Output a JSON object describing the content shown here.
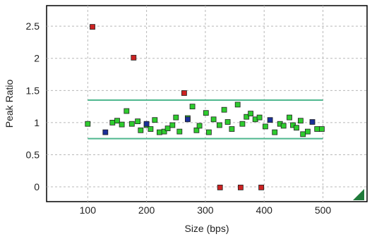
{
  "chart_data": {
    "type": "scatter",
    "title": "",
    "xlabel": "Size (bps)",
    "ylabel": "Peak Ratio",
    "xlim": [
      30,
      575
    ],
    "ylim": [
      -0.23,
      2.82
    ],
    "x_ticks": [
      100,
      200,
      300,
      400,
      500
    ],
    "x_tick_labels": [
      "100",
      "200",
      "300",
      "400",
      "500"
    ],
    "y_ticks": [
      0,
      0.5,
      1,
      1.5,
      2,
      2.5
    ],
    "y_tick_labels": [
      "0",
      "0.5",
      "1",
      "1.5",
      "2",
      "2.5"
    ],
    "grid": true,
    "grid_style": "dashed",
    "threshold_lines": [
      {
        "y": 1.35,
        "x_range": [
          100,
          500
        ],
        "color": "#4fb88f"
      },
      {
        "y": 0.75,
        "x_range": [
          100,
          500
        ],
        "color": "#4fb88f"
      }
    ],
    "colors": {
      "in_range": "#2ecc2e",
      "out_of_range": "#cc2222",
      "off_size": "#1a2f99",
      "corner_marker": "#1f7a3a"
    },
    "series": [
      {
        "category": "in_range",
        "points": [
          [
            100,
            0.98
          ],
          [
            142,
            1.0
          ],
          [
            150,
            1.03
          ],
          [
            158,
            0.97
          ],
          [
            166,
            1.18
          ],
          [
            175,
            0.98
          ],
          [
            185,
            1.02
          ],
          [
            190,
            0.88
          ],
          [
            200,
            0.96
          ],
          [
            207,
            0.9
          ],
          [
            214,
            1.04
          ],
          [
            222,
            0.85
          ],
          [
            230,
            0.86
          ],
          [
            236,
            0.91
          ],
          [
            244,
            0.96
          ],
          [
            250,
            1.08
          ],
          [
            256,
            0.86
          ],
          [
            270,
            1.07
          ],
          [
            278,
            1.25
          ],
          [
            285,
            0.88
          ],
          [
            290,
            0.95
          ],
          [
            301,
            1.15
          ],
          [
            306,
            0.85
          ],
          [
            314,
            1.05
          ],
          [
            324,
            0.96
          ],
          [
            332,
            1.2
          ],
          [
            338,
            1.01
          ],
          [
            345,
            0.9
          ],
          [
            355,
            1.28
          ],
          [
            363,
            0.98
          ],
          [
            370,
            1.09
          ],
          [
            377,
            1.14
          ],
          [
            385,
            1.05
          ],
          [
            392,
            1.08
          ],
          [
            402,
            0.94
          ],
          [
            418,
            0.85
          ],
          [
            427,
            0.98
          ],
          [
            433,
            0.95
          ],
          [
            443,
            1.08
          ],
          [
            449,
            0.96
          ],
          [
            455,
            0.92
          ],
          [
            462,
            1.03
          ],
          [
            466,
            0.82
          ],
          [
            474,
            0.86
          ],
          [
            490,
            0.9
          ],
          [
            498,
            0.9
          ]
        ]
      },
      {
        "category": "out_of_range",
        "points": [
          [
            108,
            2.49
          ],
          [
            178,
            2.01
          ],
          [
            264,
            1.46
          ],
          [
            325,
            -0.01
          ],
          [
            360,
            -0.01
          ],
          [
            395,
            -0.01
          ]
        ]
      },
      {
        "category": "off_size",
        "points": [
          [
            130,
            0.85
          ],
          [
            200,
            0.98
          ],
          [
            270,
            1.05
          ],
          [
            410,
            1.04
          ],
          [
            482,
            1.01
          ]
        ]
      }
    ]
  }
}
